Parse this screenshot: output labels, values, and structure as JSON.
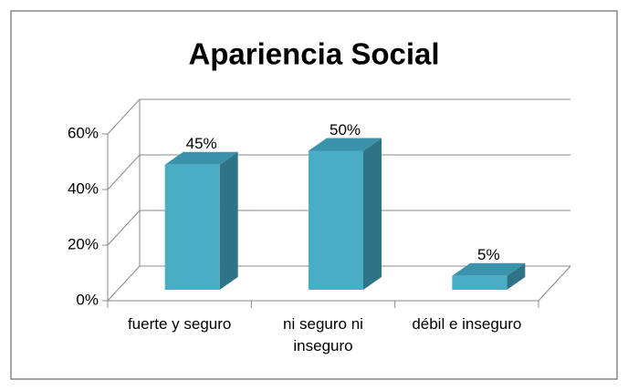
{
  "chart_data": {
    "type": "bar3d",
    "title": "Apariencia Social",
    "categories": [
      "fuerte y seguro",
      "ni seguro ni inseguro",
      "débil e inseguro"
    ],
    "values": [
      45,
      50,
      5
    ],
    "value_labels": [
      "45%",
      "50%",
      "5%"
    ],
    "color": "#4bacc6",
    "ylim": [
      0,
      60
    ],
    "yticks": [
      {
        "value": 0,
        "label": "0%"
      },
      {
        "value": 20,
        "label": "20%"
      },
      {
        "value": 40,
        "label": "40%"
      },
      {
        "value": 60,
        "label": "60%"
      }
    ],
    "grid": true
  }
}
